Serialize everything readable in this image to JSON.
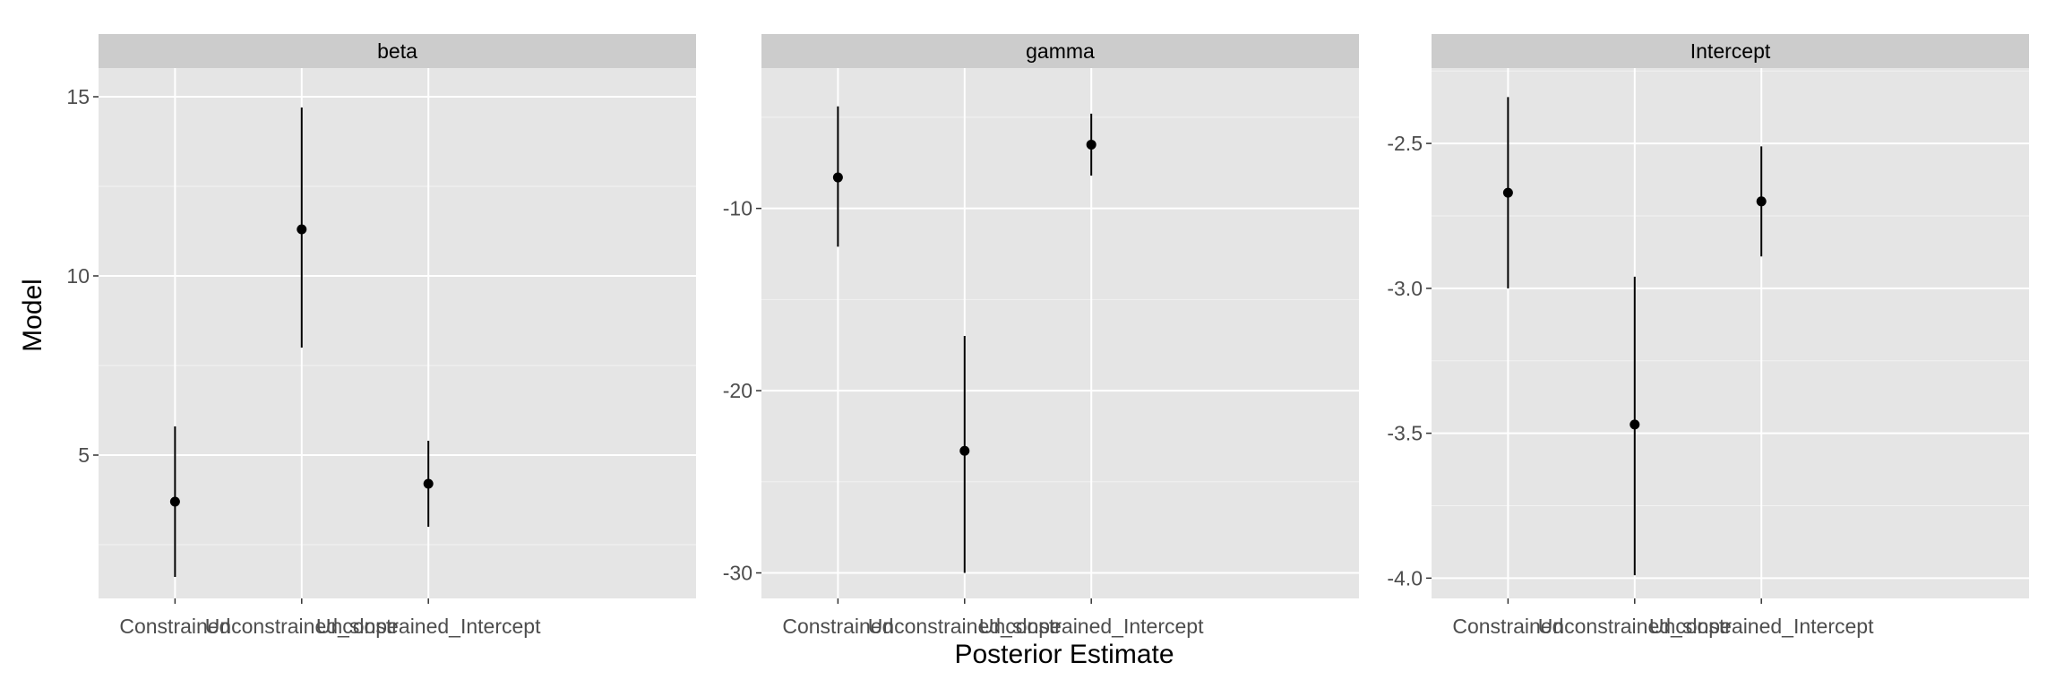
{
  "chart_data": {
    "type": "pointrange",
    "xlabel": "Posterior Estimate",
    "ylabel": "Model",
    "categories": [
      "Constrained",
      "Unconstrained_slope",
      "Unconstrained_Intercept"
    ],
    "panels": [
      {
        "title": "beta",
        "ylim": [
          1.0,
          15.8
        ],
        "yticks": [
          5,
          10,
          15
        ],
        "ytick_labels": [
          "5",
          "10",
          "15"
        ],
        "points": [
          {
            "category": "Constrained",
            "estimate": 3.7,
            "lower": 1.6,
            "upper": 5.8
          },
          {
            "category": "Unconstrained_slope",
            "estimate": 11.3,
            "lower": 8.0,
            "upper": 14.7
          },
          {
            "category": "Unconstrained_Intercept",
            "estimate": 4.2,
            "lower": 3.0,
            "upper": 5.4
          }
        ]
      },
      {
        "title": "gamma",
        "ylim": [
          -31.4,
          -2.3
        ],
        "yticks": [
          -30,
          -20,
          -10
        ],
        "ytick_labels": [
          "-30",
          "-20",
          "-10"
        ],
        "points": [
          {
            "category": "Constrained",
            "estimate": -8.3,
            "lower": -12.1,
            "upper": -4.4
          },
          {
            "category": "Unconstrained_slope",
            "estimate": -23.3,
            "lower": -30.0,
            "upper": -17.0
          },
          {
            "category": "Unconstrained_Intercept",
            "estimate": -6.5,
            "lower": -8.2,
            "upper": -4.8
          }
        ]
      },
      {
        "title": "Intercept",
        "ylim": [
          -4.07,
          -2.24
        ],
        "yticks": [
          -4.0,
          -3.5,
          -3.0,
          -2.5
        ],
        "ytick_labels": [
          "-4.0",
          "-3.5",
          "-3.0",
          "-2.5"
        ],
        "points": [
          {
            "category": "Constrained",
            "estimate": -2.67,
            "lower": -3.0,
            "upper": -2.34
          },
          {
            "category": "Unconstrained_slope",
            "estimate": -3.47,
            "lower": -3.99,
            "upper": -2.96
          },
          {
            "category": "Unconstrained_Intercept",
            "estimate": -2.7,
            "lower": -2.89,
            "upper": -2.51
          }
        ]
      }
    ],
    "grid": true,
    "colors": {
      "panel_bg": "#e5e5e5",
      "strip_bg": "#cccccc",
      "grid_major": "#ffffff",
      "grid_minor": "#f2f2f2",
      "point": "#000000",
      "tick_label": "#4d4d4d",
      "title_text": "#000000"
    }
  }
}
